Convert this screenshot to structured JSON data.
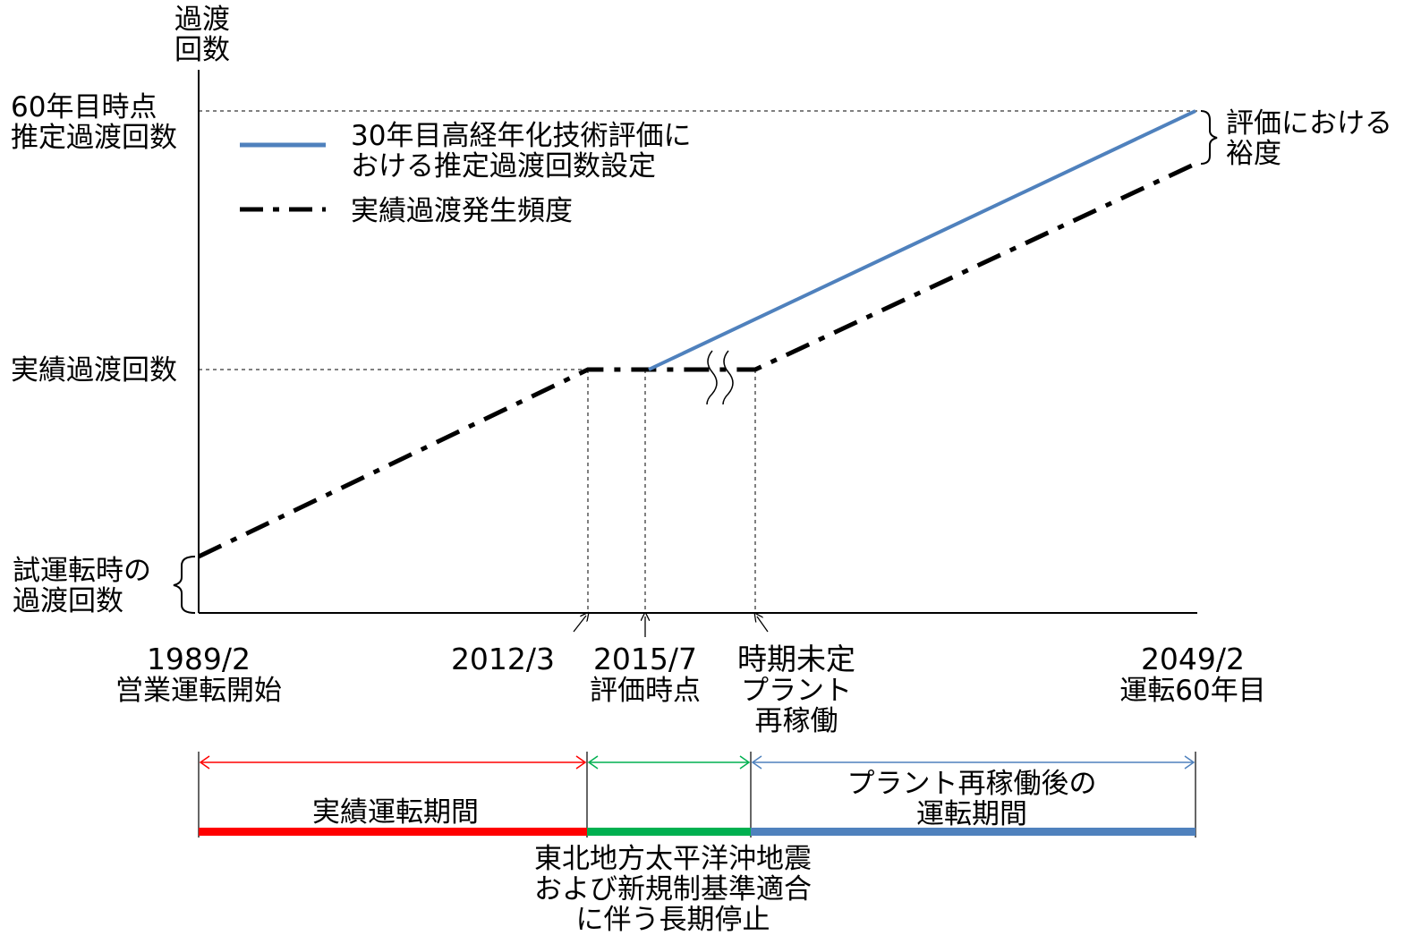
{
  "colors": {
    "design_line": "#4f81bd",
    "actual_line": "#000000",
    "red_period": "#ff0000",
    "green_period": "#00b050",
    "blue_period": "#4f81bd"
  },
  "axis": {
    "y_title": [
      "過渡",
      "回数"
    ],
    "y_labels": {
      "estimated_60yr": [
        "60年目時点",
        "推定過渡回数"
      ],
      "actual": "実績過渡回数",
      "trial": [
        "試運転時の",
        "過渡回数"
      ]
    }
  },
  "legend": {
    "design_label": [
      "30年目高経年化技術評価に",
      "おける推定過渡回数設定"
    ],
    "actual_label": "実績過渡発生頻度"
  },
  "margin_label": [
    "評価における",
    "裕度"
  ],
  "timeline": {
    "t1989": {
      "date": "1989/2",
      "caption": "営業運転開始"
    },
    "t2012": {
      "date": "2012/3"
    },
    "t2015": {
      "date": "2015/7",
      "caption": "評価時点"
    },
    "trestart": {
      "date": "時期未定",
      "caption": [
        "プラント",
        "再稼働"
      ]
    },
    "t2049": {
      "date": "2049/2",
      "caption": "運転60年目"
    }
  },
  "periods": {
    "actual": "実績運転期間",
    "after_restart": [
      "プラント再稼働後の",
      "運転期間"
    ],
    "shutdown_note": [
      "東北地方太平洋沖地震",
      "および新規制基準適合",
      "に伴う長期停止"
    ]
  }
}
